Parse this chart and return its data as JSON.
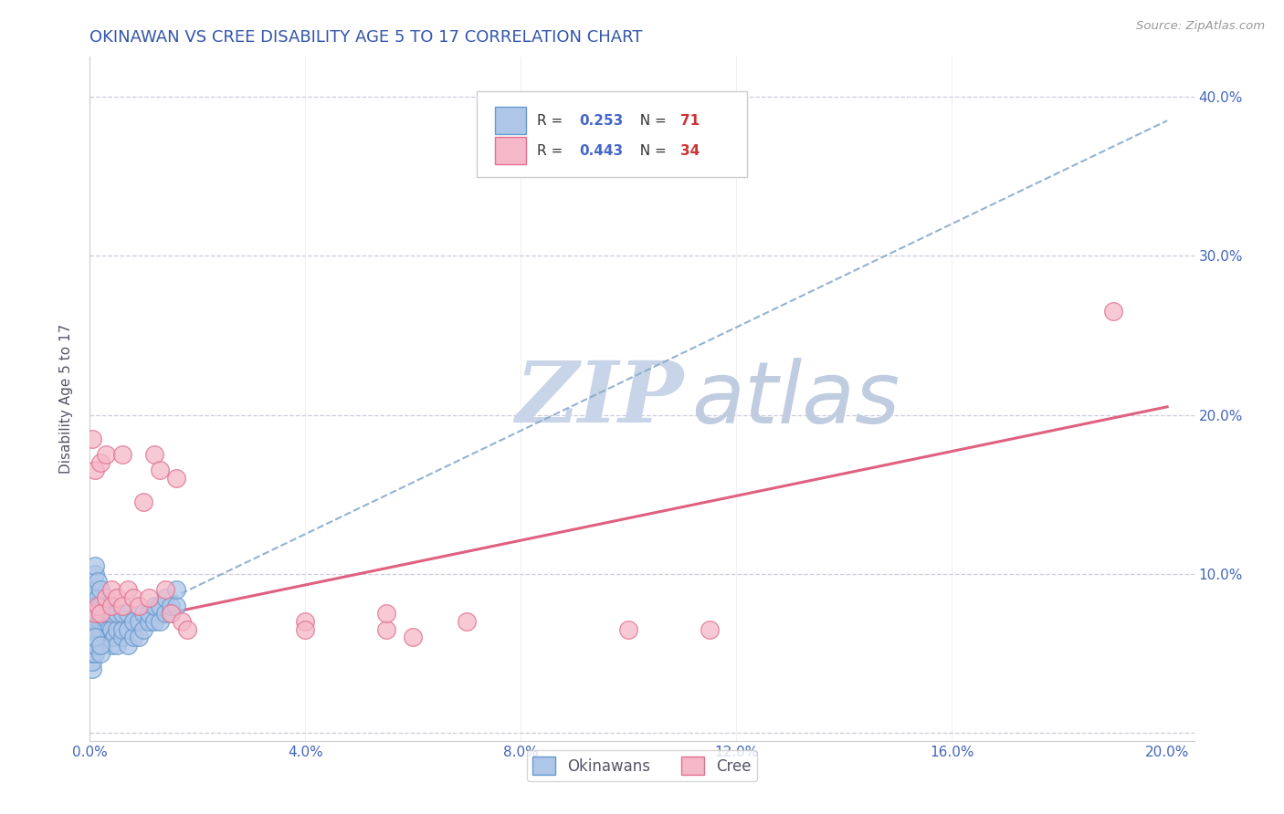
{
  "title": "OKINAWAN VS CREE DISABILITY AGE 5 TO 17 CORRELATION CHART",
  "source": "Source: ZipAtlas.com",
  "ylabel": "Disability Age 5 to 17",
  "xlim": [
    0.0,
    0.205
  ],
  "ylim": [
    -0.005,
    0.425
  ],
  "xticks": [
    0.0,
    0.04,
    0.08,
    0.12,
    0.16,
    0.2
  ],
  "xticklabels": [
    "0.0%",
    "4.0%",
    "8.0%",
    "12.0%",
    "16.0%",
    "20.0%"
  ],
  "yticks": [
    0.0,
    0.1,
    0.2,
    0.3,
    0.4
  ],
  "yticklabels": [
    "",
    "10.0%",
    "20.0%",
    "30.0%",
    "40.0%"
  ],
  "okinawan_color": "#aec6e8",
  "okinawan_edge": "#6699cc",
  "cree_color": "#f5b8c8",
  "cree_edge": "#e07090",
  "okinawan_line_color": "#88aacc",
  "cree_line_color": "#e06080",
  "R_okinawan": 0.253,
  "N_okinawan": 71,
  "R_cree": 0.443,
  "N_cree": 34,
  "title_color": "#3355aa",
  "axis_label_color": "#555566",
  "tick_label_color": "#4466bb",
  "grid_color": "#ccccdd",
  "watermark_zip_color": "#c8d4e8",
  "watermark_atlas_color": "#c0cce0",
  "legend_r_color": "#4466cc",
  "legend_n_color": "#cc3333",
  "ok_line_x0": 0.0,
  "ok_line_y0": 0.06,
  "ok_line_x1": 0.2,
  "ok_line_y1": 0.385,
  "cree_line_x0": 0.0,
  "cree_line_y0": 0.065,
  "cree_line_x1": 0.2,
  "cree_line_y1": 0.205,
  "okinawan_x": [
    0.0005,
    0.0005,
    0.001,
    0.001,
    0.001,
    0.001,
    0.001,
    0.001,
    0.0015,
    0.0015,
    0.0015,
    0.0015,
    0.002,
    0.002,
    0.002,
    0.002,
    0.002,
    0.002,
    0.0025,
    0.0025,
    0.003,
    0.003,
    0.003,
    0.003,
    0.003,
    0.0035,
    0.0035,
    0.004,
    0.004,
    0.004,
    0.0045,
    0.005,
    0.005,
    0.005,
    0.006,
    0.006,
    0.006,
    0.007,
    0.007,
    0.007,
    0.008,
    0.008,
    0.009,
    0.009,
    0.01,
    0.01,
    0.011,
    0.011,
    0.012,
    0.012,
    0.013,
    0.013,
    0.014,
    0.014,
    0.015,
    0.015,
    0.016,
    0.016,
    0.001,
    0.001,
    0.0005,
    0.0005,
    0.0005,
    0.0005,
    0.0005,
    0.0005,
    0.001,
    0.001,
    0.001,
    0.002,
    0.002
  ],
  "okinawan_y": [
    0.075,
    0.085,
    0.06,
    0.07,
    0.08,
    0.09,
    0.1,
    0.105,
    0.065,
    0.075,
    0.085,
    0.095,
    0.06,
    0.065,
    0.07,
    0.075,
    0.08,
    0.09,
    0.065,
    0.075,
    0.06,
    0.065,
    0.07,
    0.075,
    0.08,
    0.065,
    0.075,
    0.055,
    0.065,
    0.075,
    0.06,
    0.055,
    0.065,
    0.075,
    0.06,
    0.065,
    0.075,
    0.055,
    0.065,
    0.075,
    0.06,
    0.07,
    0.06,
    0.07,
    0.065,
    0.075,
    0.07,
    0.075,
    0.07,
    0.08,
    0.07,
    0.08,
    0.075,
    0.085,
    0.075,
    0.08,
    0.08,
    0.09,
    0.055,
    0.06,
    0.04,
    0.045,
    0.05,
    0.055,
    0.06,
    0.065,
    0.05,
    0.055,
    0.06,
    0.05,
    0.055
  ],
  "cree_x": [
    0.0005,
    0.001,
    0.001,
    0.0015,
    0.002,
    0.002,
    0.003,
    0.003,
    0.004,
    0.004,
    0.005,
    0.006,
    0.006,
    0.007,
    0.008,
    0.009,
    0.01,
    0.011,
    0.012,
    0.013,
    0.014,
    0.015,
    0.016,
    0.017,
    0.018,
    0.04,
    0.04,
    0.055,
    0.055,
    0.06,
    0.07,
    0.1,
    0.115,
    0.19
  ],
  "cree_y": [
    0.185,
    0.075,
    0.165,
    0.08,
    0.075,
    0.17,
    0.085,
    0.175,
    0.09,
    0.08,
    0.085,
    0.08,
    0.175,
    0.09,
    0.085,
    0.08,
    0.145,
    0.085,
    0.175,
    0.165,
    0.09,
    0.075,
    0.16,
    0.07,
    0.065,
    0.07,
    0.065,
    0.065,
    0.075,
    0.06,
    0.07,
    0.065,
    0.065,
    0.265
  ]
}
